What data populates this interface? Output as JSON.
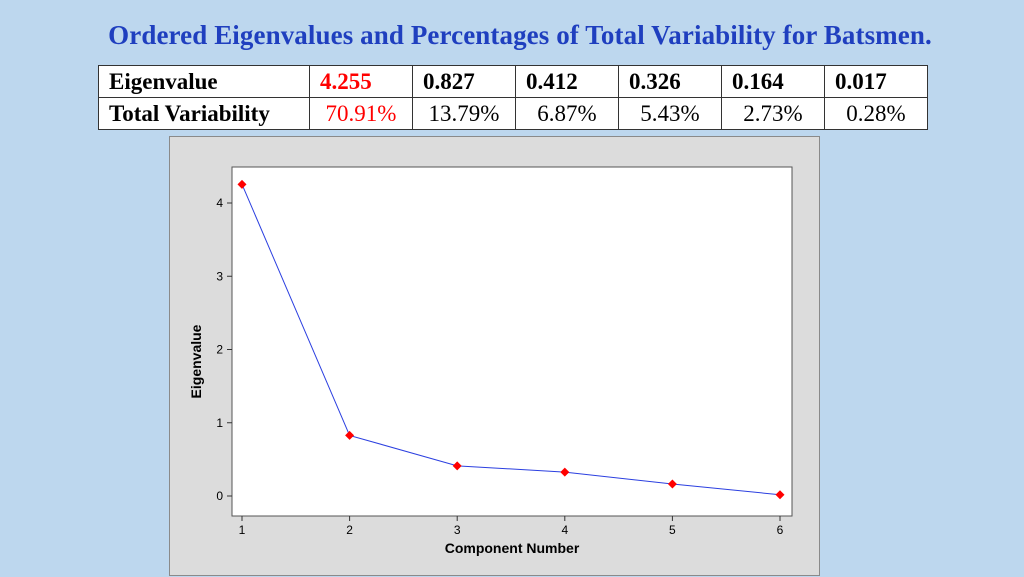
{
  "title": "Ordered Eigenvalues and Percentages of Total Variability for Batsmen.",
  "table": {
    "row_labels": [
      "Eigenvalue",
      "Total Variability"
    ],
    "eigenvalues": [
      "4.255",
      "0.827",
      "0.412",
      "0.326",
      "0.164",
      "0.017"
    ],
    "variability": [
      "70.91%",
      "13.79%",
      "6.87%",
      "5.43%",
      "2.73%",
      "0.28%"
    ],
    "highlight_color": "#ff0000"
  },
  "chart_data": {
    "type": "line",
    "title": "",
    "xlabel": "Component Number",
    "ylabel": "Eigenvalue",
    "x": [
      1,
      2,
      3,
      4,
      5,
      6
    ],
    "y": [
      4.255,
      0.827,
      0.412,
      0.326,
      0.164,
      0.017
    ],
    "xlim": [
      1,
      6
    ],
    "ylim": [
      0,
      4
    ],
    "xticks": [
      "1",
      "2",
      "3",
      "4",
      "5",
      "6"
    ],
    "yticks": [
      "0",
      "1",
      "2",
      "3",
      "4"
    ],
    "grid": false,
    "legend": "none",
    "line_color": "#2b3fe0",
    "marker_color": "#ff0000",
    "plot_background": "#ffffff",
    "panel_background": "#dcdcdc"
  }
}
